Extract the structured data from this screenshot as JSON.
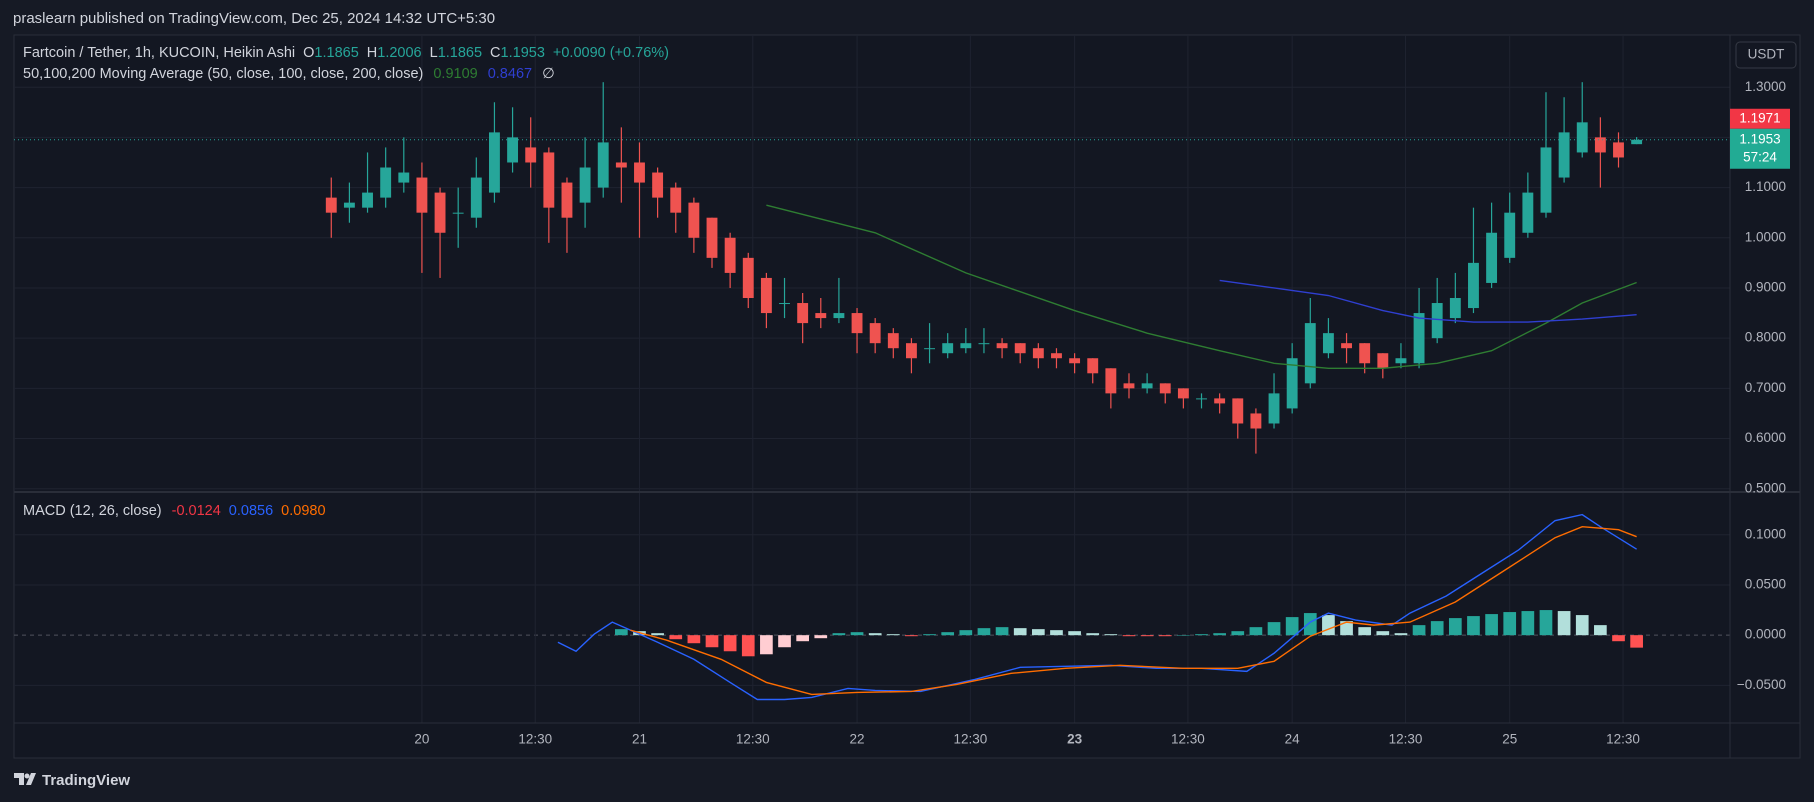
{
  "header": "praslearn published on TradingView.com, Dec 25, 2024 14:32 UTC+5:30",
  "footer": "TradingView",
  "chart_data": [
    {
      "type": "candlestick",
      "title": "Fartcoin / Tether, 1h, KUCOIN, Heikin Ashi",
      "ohlc_letters": [
        "O",
        "H",
        "L",
        "C"
      ],
      "change_label": "+0.0090 (+0.76%)",
      "axis_unit": "USDT",
      "up_color": "#26a69a",
      "down_color": "#ef5350",
      "x": [
        -10,
        -8,
        -6,
        -4,
        -2,
        0,
        2,
        4,
        6,
        8,
        10,
        12,
        14,
        16,
        18,
        20,
        22,
        24,
        26,
        28,
        30,
        32,
        34,
        36,
        38,
        40,
        42,
        44,
        46,
        48,
        50,
        52,
        54,
        56,
        58,
        60,
        62,
        64,
        66,
        68,
        70,
        72,
        74,
        76,
        78,
        80,
        82,
        84,
        86,
        88,
        90,
        92,
        94,
        96,
        98,
        100,
        102,
        104,
        106,
        108,
        110,
        112,
        114,
        116,
        118,
        120,
        122,
        124,
        126,
        128,
        130,
        132,
        134
      ],
      "open": [
        1.08,
        1.06,
        1.06,
        1.08,
        1.11,
        1.12,
        1.09,
        1.05,
        1.04,
        1.09,
        1.15,
        1.18,
        1.17,
        1.11,
        1.07,
        1.1,
        1.15,
        1.15,
        1.13,
        1.1,
        1.07,
        1.04,
        1.0,
        0.96,
        0.92,
        0.87,
        0.87,
        0.85,
        0.84,
        0.85,
        0.83,
        0.81,
        0.79,
        0.78,
        0.77,
        0.78,
        0.79,
        0.79,
        0.79,
        0.78,
        0.77,
        0.76,
        0.76,
        0.74,
        0.71,
        0.7,
        0.71,
        0.7,
        0.68,
        0.68,
        0.68,
        0.65,
        0.63,
        0.66,
        0.71,
        0.77,
        0.79,
        0.79,
        0.77,
        0.75,
        0.75,
        0.8,
        0.84,
        0.86,
        0.91,
        0.96,
        1.01,
        1.05,
        1.12,
        1.17,
        1.2,
        1.19,
        1.1865
      ],
      "high": [
        1.12,
        1.11,
        1.17,
        1.18,
        1.2,
        1.15,
        1.1,
        1.1,
        1.16,
        1.27,
        1.26,
        1.24,
        1.18,
        1.12,
        1.2,
        1.31,
        1.22,
        1.19,
        1.14,
        1.11,
        1.08,
        1.04,
        1.01,
        0.97,
        0.93,
        0.92,
        0.89,
        0.88,
        0.92,
        0.86,
        0.84,
        0.82,
        0.8,
        0.83,
        0.81,
        0.82,
        0.82,
        0.8,
        0.79,
        0.79,
        0.78,
        0.77,
        0.76,
        0.74,
        0.73,
        0.73,
        0.71,
        0.7,
        0.69,
        0.69,
        0.68,
        0.66,
        0.73,
        0.79,
        0.88,
        0.84,
        0.81,
        0.79,
        0.77,
        0.79,
        0.9,
        0.92,
        0.93,
        1.06,
        1.07,
        1.09,
        1.13,
        1.29,
        1.28,
        1.31,
        1.24,
        1.21,
        1.2006
      ],
      "low": [
        1.0,
        1.03,
        1.05,
        1.06,
        1.09,
        0.93,
        0.92,
        0.98,
        1.02,
        1.07,
        1.13,
        1.1,
        0.99,
        0.97,
        1.02,
        1.08,
        1.07,
        1.0,
        1.04,
        1.01,
        0.97,
        0.94,
        0.9,
        0.86,
        0.82,
        0.84,
        0.79,
        0.82,
        0.83,
        0.77,
        0.77,
        0.76,
        0.73,
        0.75,
        0.76,
        0.77,
        0.77,
        0.76,
        0.75,
        0.74,
        0.74,
        0.73,
        0.71,
        0.66,
        0.68,
        0.69,
        0.67,
        0.66,
        0.66,
        0.65,
        0.6,
        0.57,
        0.62,
        0.65,
        0.7,
        0.76,
        0.75,
        0.73,
        0.72,
        0.74,
        0.74,
        0.79,
        0.83,
        0.85,
        0.9,
        0.95,
        1.0,
        1.04,
        1.11,
        1.16,
        1.1,
        1.14,
        1.1865
      ],
      "close": [
        1.05,
        1.07,
        1.09,
        1.14,
        1.13,
        1.05,
        1.01,
        1.05,
        1.12,
        1.21,
        1.2,
        1.15,
        1.06,
        1.04,
        1.14,
        1.19,
        1.14,
        1.11,
        1.08,
        1.05,
        1.0,
        0.96,
        0.93,
        0.88,
        0.85,
        0.87,
        0.83,
        0.84,
        0.85,
        0.81,
        0.79,
        0.78,
        0.76,
        0.78,
        0.79,
        0.79,
        0.79,
        0.78,
        0.77,
        0.76,
        0.76,
        0.75,
        0.73,
        0.69,
        0.7,
        0.71,
        0.69,
        0.68,
        0.68,
        0.67,
        0.63,
        0.62,
        0.69,
        0.76,
        0.83,
        0.81,
        0.78,
        0.75,
        0.74,
        0.76,
        0.85,
        0.87,
        0.88,
        0.95,
        1.01,
        1.05,
        1.09,
        1.18,
        1.21,
        1.23,
        1.17,
        1.16,
        1.1953
      ],
      "indicator": "50,100,200 Moving Average (50, close, 100, close, 200, close)",
      "indicator_hidden": "∅",
      "series": [
        {
          "color": "#2e7d32",
          "legend_value": "0.9109",
          "x": [
            38,
            50,
            60,
            72,
            80,
            88,
            94,
            100,
            106,
            112,
            118,
            124,
            128,
            134
          ],
          "values": [
            1.065,
            1.01,
            0.93,
            0.855,
            0.81,
            0.775,
            0.75,
            0.74,
            0.74,
            0.75,
            0.775,
            0.83,
            0.87,
            0.9109
          ]
        },
        {
          "color": "#2f3fd1",
          "legend_value": "0.8467",
          "x": [
            88,
            94,
            100,
            106,
            110,
            116,
            122,
            128,
            134
          ],
          "values": [
            0.915,
            0.9,
            0.885,
            0.855,
            0.84,
            0.832,
            0.832,
            0.838,
            0.8467
          ]
        }
      ],
      "price_labels": [
        {
          "value": 1.1971,
          "label": "1.1971",
          "color": "#f23645"
        },
        {
          "value": 1.1953,
          "label": "1.1953",
          "color": "#22ab94",
          "countdown": "57:24"
        }
      ],
      "xlim": [
        -45,
        144.3
      ],
      "ylim": [
        0.4935,
        1.404
      ],
      "yticks": [
        {
          "value": 0.5,
          "label": "0.5000"
        },
        {
          "value": 0.6,
          "label": "0.6000"
        },
        {
          "value": 0.7,
          "label": "0.7000"
        },
        {
          "value": 0.8,
          "label": "0.8000"
        },
        {
          "value": 0.9,
          "label": "0.9000"
        },
        {
          "value": 1.0,
          "label": "1.0000"
        },
        {
          "value": 1.1,
          "label": "1.1000"
        },
        {
          "value": 1.2,
          "label": "1.2000"
        },
        {
          "value": 1.3,
          "label": "1.3000"
        }
      ],
      "grid": true
    },
    {
      "type": "macd",
      "title": "MACD (12, 26, close)",
      "histogram": {
        "legend_value": "-0.0124",
        "legend_color": "#f23645",
        "colors": {
          "rising_up": "#26a69a",
          "falling_up": "#b2dfdb",
          "falling_down": "#ff5252",
          "rising_down": "#ffcdd2"
        },
        "x": [
          22,
          24,
          26,
          28,
          30,
          32,
          34,
          36,
          38,
          40,
          42,
          44,
          46,
          48,
          50,
          52,
          54,
          56,
          58,
          60,
          62,
          64,
          66,
          68,
          70,
          72,
          74,
          76,
          78,
          80,
          82,
          84,
          86,
          88,
          90,
          92,
          94,
          96,
          98,
          100,
          102,
          104,
          106,
          108,
          110,
          112,
          114,
          116,
          118,
          120,
          122,
          124,
          126,
          128,
          130,
          132,
          134
        ],
        "values": [
          0.006,
          0.004,
          0.002,
          -0.004,
          -0.008,
          -0.012,
          -0.016,
          -0.021,
          -0.019,
          -0.012,
          -0.006,
          -0.003,
          0.002,
          0.003,
          0.002,
          0.001,
          -0.001,
          0.001,
          0.003,
          0.005,
          0.007,
          0.008,
          0.007,
          0.006,
          0.005,
          0.004,
          0.002,
          0.001,
          -0.001,
          -0.001,
          -0.001,
          0,
          0.001,
          0.002,
          0.004,
          0.008,
          0.013,
          0.018,
          0.022,
          0.02,
          0.014,
          0.008,
          0.004,
          0.002,
          0.01,
          0.014,
          0.017,
          0.019,
          0.021,
          0.023,
          0.024,
          0.025,
          0.024,
          0.02,
          0.01,
          -0.006,
          -0.0124
        ]
      },
      "series": [
        {
          "color": "#2962ff",
          "legend_value": "0.0856",
          "x": [
            15,
            17,
            19,
            21,
            23,
            26,
            30,
            34,
            37,
            40,
            43,
            47,
            50,
            55,
            61,
            66,
            71,
            76,
            81,
            86,
            91,
            94,
            98,
            100,
            103,
            107,
            109,
            113,
            117,
            121,
            125,
            128,
            130,
            134
          ],
          "values": [
            -0.007,
            -0.016,
            0.001,
            0.013,
            0.005,
            -0.007,
            -0.024,
            -0.047,
            -0.064,
            -0.064,
            -0.062,
            -0.053,
            -0.055,
            -0.056,
            -0.044,
            -0.032,
            -0.031,
            -0.03,
            -0.033,
            -0.033,
            -0.036,
            -0.018,
            0.013,
            0.022,
            0.015,
            0.01,
            0.022,
            0.039,
            0.062,
            0.085,
            0.114,
            0.12,
            0.108,
            0.0856
          ]
        },
        {
          "color": "#ff6d00",
          "legend_value": "0.0980",
          "x": [
            23,
            27,
            33,
            38,
            43,
            48,
            54,
            59,
            65,
            71,
            77,
            84,
            90,
            94,
            98,
            102,
            105,
            109,
            114,
            119,
            125,
            128,
            132,
            134
          ],
          "values": [
            0.005,
            -0.005,
            -0.024,
            -0.047,
            -0.059,
            -0.057,
            -0.056,
            -0.049,
            -0.038,
            -0.033,
            -0.03,
            -0.033,
            -0.033,
            -0.026,
            -0.001,
            0.013,
            0.01,
            0.013,
            0.033,
            0.062,
            0.097,
            0.108,
            0.105,
            0.098
          ]
        }
      ],
      "xlim": [
        -45,
        144.3
      ],
      "ylim": [
        -0.0874,
        0.1425
      ],
      "yticks": [
        {
          "value": -0.05,
          "label": "−0.0500"
        },
        {
          "value": 0,
          "label": "0.0000"
        },
        {
          "value": 0.05,
          "label": "0.0500"
        },
        {
          "value": 0.1,
          "label": "0.1000"
        }
      ],
      "xticks": [
        {
          "value": 0,
          "label": "20"
        },
        {
          "value": 12.5,
          "label": "12:30"
        },
        {
          "value": 24,
          "label": "21"
        },
        {
          "value": 36.5,
          "label": "12:30"
        },
        {
          "value": 48,
          "label": "22"
        },
        {
          "value": 60.5,
          "label": "12:30"
        },
        {
          "value": 72,
          "label": "23",
          "bold": true
        },
        {
          "value": 84.5,
          "label": "12:30"
        },
        {
          "value": 96,
          "label": "24"
        },
        {
          "value": 108.5,
          "label": "12:30"
        },
        {
          "value": 120,
          "label": "25"
        },
        {
          "value": 132.5,
          "label": "12:30"
        }
      ],
      "grid": true
    }
  ]
}
